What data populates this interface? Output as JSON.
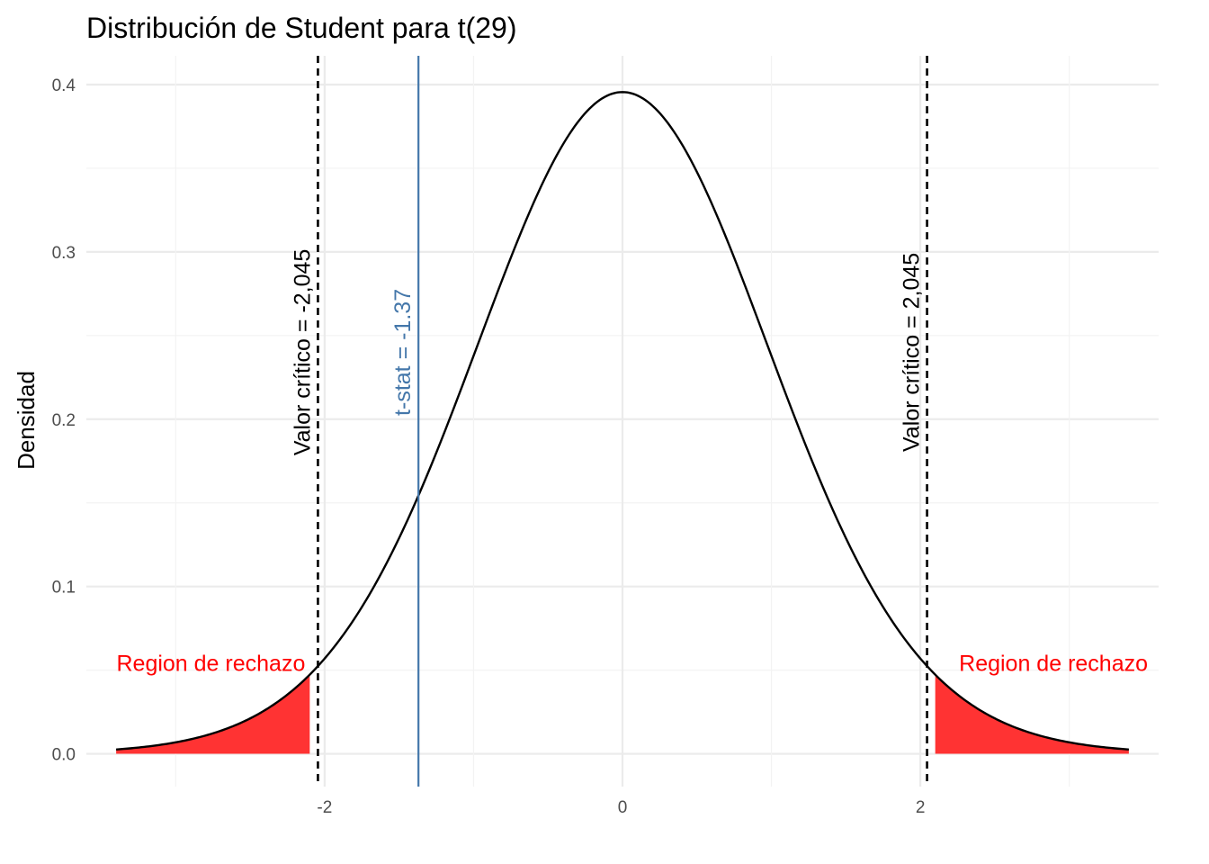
{
  "chart_data": {
    "type": "line",
    "title": "Distribución de Student para t(29)",
    "xlabel": "",
    "ylabel": "Densidad",
    "xlim": [
      -3.4,
      3.4
    ],
    "ylim": [
      0,
      0.4
    ],
    "x_ticks": [
      -2,
      0,
      2
    ],
    "x_tick_labels": [
      "-2",
      "0",
      "2"
    ],
    "y_ticks": [
      0.0,
      0.1,
      0.2,
      0.3,
      0.4
    ],
    "y_tick_labels": [
      "0.0",
      "0.1",
      "0.2",
      "0.3",
      "0.4"
    ],
    "grid": true,
    "distribution": {
      "name": "t",
      "df": 29
    },
    "series": [
      {
        "x": [
          -3.4,
          -3.2,
          -3.0,
          -2.8,
          -2.6,
          -2.4,
          -2.2,
          -2.0,
          -1.8,
          -1.6,
          -1.4,
          -1.2,
          -1.0,
          -0.8,
          -0.6,
          -0.4,
          -0.2,
          0.0,
          0.2,
          0.4,
          0.6,
          0.8,
          1.0,
          1.2,
          1.4,
          1.6,
          1.8,
          2.0,
          2.2,
          2.4,
          2.6,
          2.8,
          3.0,
          3.2,
          3.4
        ],
        "values": [
          0.0027,
          0.0044,
          0.0067,
          0.0102,
          0.0152,
          0.0224,
          0.0326,
          0.054,
          0.081,
          0.112,
          0.148,
          0.192,
          0.238,
          0.288,
          0.33,
          0.365,
          0.387,
          0.395,
          0.387,
          0.365,
          0.33,
          0.288,
          0.238,
          0.192,
          0.148,
          0.112,
          0.081,
          0.054,
          0.0326,
          0.0224,
          0.0152,
          0.0102,
          0.0067,
          0.0044,
          0.0027
        ],
        "color": "#000000"
      }
    ],
    "rejection_regions": [
      {
        "from": -3.4,
        "to": -2.1,
        "color": "#ff3333",
        "label": "Region de rechazo"
      },
      {
        "from": 2.1,
        "to": 3.4,
        "color": "#ff3333",
        "label": "Region de rechazo"
      }
    ],
    "vlines": [
      {
        "x": -2.045,
        "style": "dashed",
        "color": "#000000",
        "label": "Valor crítico = -2,045"
      },
      {
        "x": 2.045,
        "style": "dashed",
        "color": "#000000",
        "label": "Valor crítico = 2,045"
      },
      {
        "x": -1.37,
        "style": "solid",
        "color": "#4477aa",
        "label": "t-stat = -1.37"
      }
    ],
    "label_color": "#ff0000"
  }
}
